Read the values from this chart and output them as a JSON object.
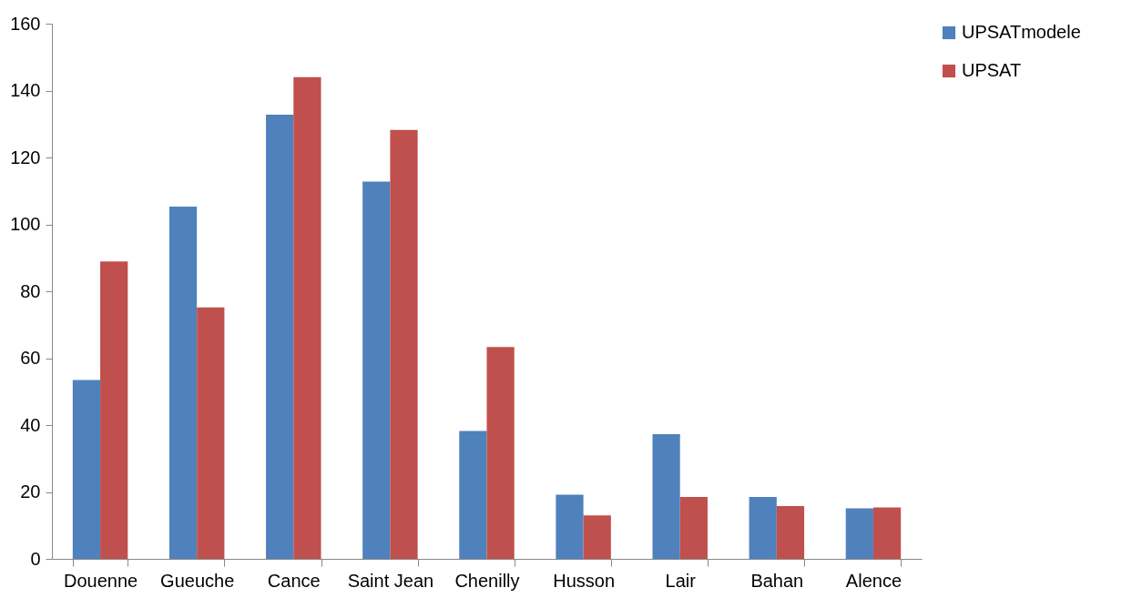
{
  "chart_data": {
    "type": "bar",
    "categories": [
      "Douenne",
      "Gueuche",
      "Cance",
      "Saint Jean",
      "Chenilly",
      "Husson",
      "Lair",
      "Bahan",
      "Alence"
    ],
    "series": [
      {
        "name": "UPSATmodele",
        "color": "#4f81bd",
        "values": [
          53.5,
          105.3,
          132.8,
          112.8,
          38.2,
          19.2,
          37.3,
          18.5,
          15.1
        ]
      },
      {
        "name": "UPSAT",
        "color": "#c0504d",
        "values": [
          88.9,
          75.2,
          144,
          128.2,
          63.3,
          13.0,
          18.5,
          15.8,
          15.4
        ]
      }
    ],
    "ylim": [
      0,
      160
    ],
    "yticks": [
      0,
      20,
      40,
      60,
      80,
      100,
      120,
      140,
      160
    ],
    "grid": false,
    "legend": "right"
  }
}
